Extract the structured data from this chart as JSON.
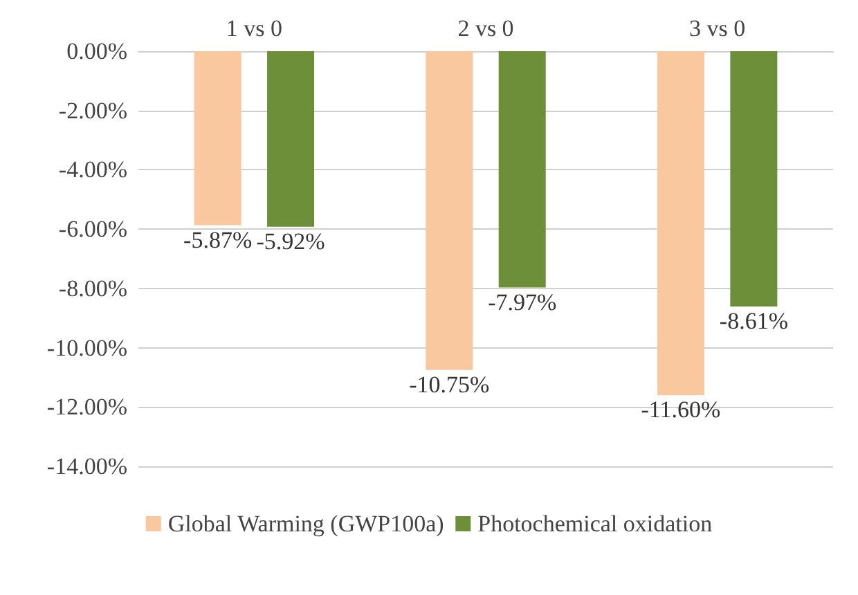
{
  "chart_data": {
    "type": "bar",
    "categories": [
      "1 vs 0",
      "2 vs 0",
      "3 vs 0"
    ],
    "series": [
      {
        "name": "Global Warming (GWP100a)",
        "color": "#f9c89e",
        "values": [
          -5.87,
          -10.75,
          -11.6
        ],
        "value_labels": [
          "-5.87%",
          "-10.75%",
          "-11.60%"
        ]
      },
      {
        "name": "Photochemical oxidation",
        "color": "#6e8f3a",
        "values": [
          -5.92,
          -7.97,
          -8.61
        ],
        "value_labels": [
          "-5.92%",
          "-7.97%",
          "-8.61%"
        ]
      }
    ],
    "ylim": [
      -14,
      0
    ],
    "yticks": [
      {
        "value": 0,
        "label": "0.00%"
      },
      {
        "value": -2,
        "label": "-2.00%"
      },
      {
        "value": -4,
        "label": "-4.00%"
      },
      {
        "value": -6,
        "label": "-6.00%"
      },
      {
        "value": -8,
        "label": "-8.00%"
      },
      {
        "value": -10,
        "label": "-10.00%"
      },
      {
        "value": -12,
        "label": "-12.00%"
      },
      {
        "value": -14,
        "label": "-14.00%"
      }
    ],
    "grid": "y",
    "legend": "bottom"
  }
}
